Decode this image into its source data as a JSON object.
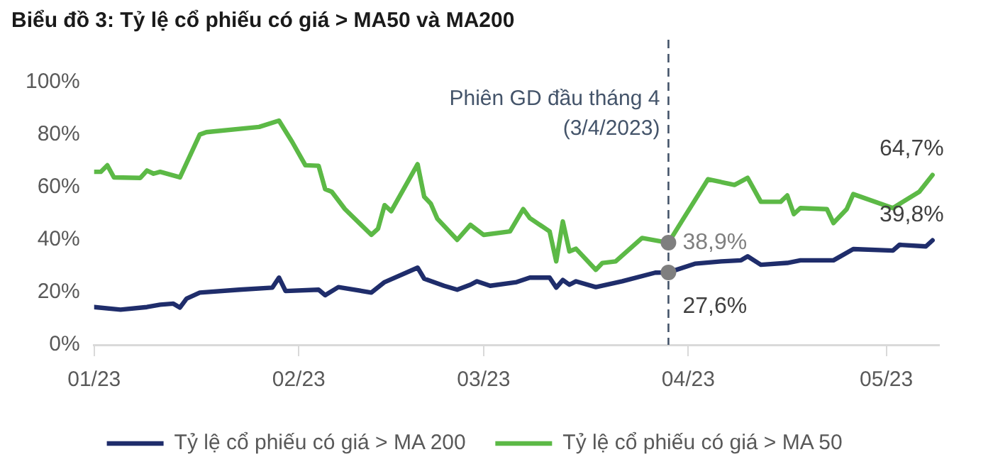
{
  "chart_data": {
    "type": "line",
    "title": "Biểu đồ 3: Tỷ lệ cổ phiếu có giá > MA50 và MA200",
    "xlim": [
      "2023-01-06",
      "2023-05-14"
    ],
    "xticks": [
      {
        "value": "2023-01-06",
        "label": "01/23"
      },
      {
        "value": "2023-02-06",
        "label": "02/23"
      },
      {
        "value": "2023-03-06",
        "label": "03/23"
      },
      {
        "value": "2023-04-06",
        "label": "04/23"
      },
      {
        "value": "2023-05-06",
        "label": "05/23"
      }
    ],
    "ylim": [
      0,
      100
    ],
    "yticks": [
      {
        "value": 0,
        "label": "0%"
      },
      {
        "value": 20,
        "label": "20%"
      },
      {
        "value": 40,
        "label": "40%"
      },
      {
        "value": 60,
        "label": "60%"
      },
      {
        "value": 80,
        "label": "80%"
      },
      {
        "value": 100,
        "label": "100%"
      }
    ],
    "grid": false,
    "legend": "bottom",
    "marker": "none",
    "line_style": "solid",
    "series": [
      {
        "name": "Tỷ lệ cổ phiếu có giá > MA 200",
        "color": "#1f2d6b",
        "x": [
          "2023-01-06",
          "2023-01-10",
          "2023-01-14",
          "2023-01-16",
          "2023-01-18",
          "2023-01-19",
          "2023-01-20",
          "2023-01-22",
          "2023-01-28",
          "2023-02-02",
          "2023-02-03",
          "2023-02-04",
          "2023-02-09",
          "2023-02-10",
          "2023-02-12",
          "2023-02-17",
          "2023-02-19",
          "2023-02-24",
          "2023-02-25",
          "2023-02-28",
          "2023-03-02",
          "2023-03-04",
          "2023-03-05",
          "2023-03-07",
          "2023-03-11",
          "2023-03-13",
          "2023-03-16",
          "2023-03-17",
          "2023-03-18",
          "2023-03-19",
          "2023-03-20",
          "2023-03-23",
          "2023-03-27",
          "2023-04-01",
          "2023-04-03",
          "2023-04-07",
          "2023-04-11",
          "2023-04-14",
          "2023-04-15",
          "2023-04-17",
          "2023-04-21",
          "2023-04-23",
          "2023-04-28",
          "2023-05-01",
          "2023-05-07",
          "2023-05-08",
          "2023-05-12",
          "2023-05-13"
        ],
        "values": [
          14.4,
          13.4,
          14.4,
          15.3,
          15.7,
          14.2,
          17.6,
          19.9,
          21,
          21.8,
          25.6,
          20.5,
          21,
          18.9,
          22,
          19.9,
          23.9,
          29.4,
          25.2,
          22.5,
          21,
          22.9,
          24.2,
          22.5,
          23.9,
          25.6,
          25.6,
          21.8,
          24.7,
          22.9,
          24.2,
          22,
          24.2,
          27.5,
          27.6,
          30.9,
          31.8,
          32.2,
          33.7,
          30.5,
          31.2,
          32.2,
          32.2,
          36.5,
          35.9,
          38.1,
          37.5,
          39.8
        ]
      },
      {
        "name": "Tỷ lệ cổ phiếu có giá > MA 50",
        "color": "#5cb946",
        "x": [
          "2023-01-06",
          "2023-01-07",
          "2023-01-08",
          "2023-01-09",
          "2023-01-13",
          "2023-01-14",
          "2023-01-15",
          "2023-01-16",
          "2023-01-19",
          "2023-01-22",
          "2023-01-23",
          "2023-01-31",
          "2023-02-03",
          "2023-02-05",
          "2023-02-07",
          "2023-02-09",
          "2023-02-10",
          "2023-02-11",
          "2023-02-13",
          "2023-02-17",
          "2023-02-18",
          "2023-02-19",
          "2023-02-20",
          "2023-02-24",
          "2023-02-25",
          "2023-02-26",
          "2023-02-27",
          "2023-03-02",
          "2023-03-04",
          "2023-03-06",
          "2023-03-10",
          "2023-03-12",
          "2023-03-13",
          "2023-03-16",
          "2023-03-17",
          "2023-03-18",
          "2023-03-19",
          "2023-03-20",
          "2023-03-23",
          "2023-03-24",
          "2023-03-26",
          "2023-03-30",
          "2023-04-03",
          "2023-04-05",
          "2023-04-09",
          "2023-04-13",
          "2023-04-15",
          "2023-04-17",
          "2023-04-20",
          "2023-04-21",
          "2023-04-22",
          "2023-04-23",
          "2023-04-27",
          "2023-04-28",
          "2023-04-30",
          "2023-05-01",
          "2023-05-07",
          "2023-05-11",
          "2023-05-13"
        ],
        "values": [
          65.9,
          65.9,
          68.4,
          63.8,
          63.6,
          66.4,
          65.2,
          65.9,
          63.8,
          80.1,
          81,
          83,
          85.4,
          77.3,
          68.4,
          68.2,
          59.3,
          58.3,
          51.7,
          41.9,
          44.2,
          53.2,
          50.9,
          68.8,
          56.4,
          53.8,
          48,
          40,
          45.7,
          41.9,
          43.2,
          51.7,
          48.3,
          43.2,
          31.8,
          47,
          35.6,
          36.6,
          28.6,
          31.2,
          31.8,
          40.7,
          38.9,
          47,
          63.1,
          60.9,
          63.6,
          54.5,
          54.5,
          56.9,
          49.8,
          52.1,
          51.7,
          46.4,
          51.7,
          57.4,
          52.1,
          58.3,
          64.7
        ]
      }
    ],
    "ref_lines": [
      {
        "axis": "x",
        "value": "2023-04-03",
        "label": "Phiên GD đầu tháng 4\n(3/4/2023)",
        "color": "#44546a",
        "line_style": "dashed"
      }
    ],
    "annotations": [
      {
        "text": "38,9%",
        "x": "2023-04-03",
        "y": 38.9
      },
      {
        "text": "27,6%",
        "x": "2023-04-03",
        "y": 27.6
      },
      {
        "text": "64,7%",
        "x": "2023-05-13",
        "y": 64.7
      },
      {
        "text": "39,8%",
        "x": "2023-05-13",
        "y": 39.8
      }
    ]
  }
}
